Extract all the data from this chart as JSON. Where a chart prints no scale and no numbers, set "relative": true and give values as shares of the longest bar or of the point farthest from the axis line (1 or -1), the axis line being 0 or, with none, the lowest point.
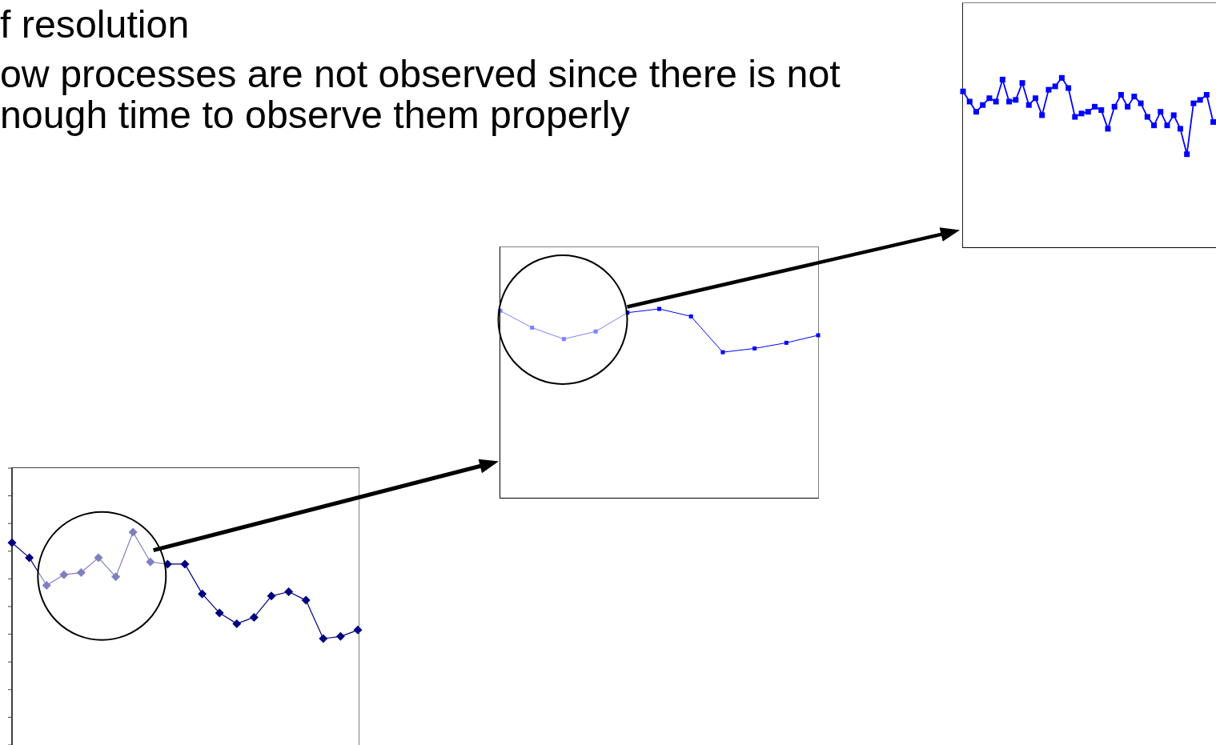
{
  "chart_data": [
    {
      "type": "other",
      "annotations": [
        "f resolution",
        "ow processes are not observed since there is not",
        "nough time to observe them properly"
      ]
    },
    {
      "type": "line",
      "relative": true,
      "categories": [
        null,
        null,
        null,
        null,
        null,
        null,
        null,
        null,
        null,
        null,
        null,
        null,
        null,
        null,
        null,
        null,
        null,
        null,
        null,
        null,
        null
      ],
      "values": [
        0.95,
        0.88,
        0.75,
        0.8,
        0.81,
        0.88,
        0.79,
        1,
        0.86,
        0.85,
        0.85,
        0.71,
        0.62,
        0.57,
        0.6,
        0.7,
        0.72,
        0.68,
        0.5,
        0.51,
        0.54
      ],
      "color": "#000080",
      "marker": "diamond",
      "line_style": "solid"
    },
    {
      "type": "line",
      "relative": true,
      "categories": [
        null,
        null,
        null,
        null,
        null,
        null,
        null,
        null,
        null,
        null,
        null
      ],
      "values": [
        0.99,
        0.9,
        0.84,
        0.88,
        0.98,
        1,
        0.96,
        0.77,
        0.79,
        0.82,
        0.86
      ],
      "color": "#0000ff",
      "marker": "square",
      "line_style": "solid"
    },
    {
      "type": "line",
      "relative": true,
      "categories": [
        null,
        null,
        null,
        null,
        null,
        null,
        null,
        null,
        null,
        null,
        null,
        null,
        null,
        null,
        null,
        null,
        null,
        null,
        null,
        null,
        null,
        null,
        null,
        null,
        null,
        null,
        null,
        null,
        null,
        null,
        null,
        null,
        null,
        null,
        null,
        null,
        null,
        null,
        null
      ],
      "values": [
        0.92,
        0.86,
        0.8,
        0.84,
        0.88,
        0.86,
        0.99,
        0.86,
        0.87,
        0.97,
        0.84,
        0.88,
        0.78,
        0.93,
        0.95,
        1,
        0.94,
        0.77,
        0.79,
        0.8,
        0.83,
        0.81,
        0.7,
        0.83,
        0.9,
        0.83,
        0.89,
        0.85,
        0.77,
        0.72,
        0.8,
        0.72,
        0.78,
        0.7,
        0.55,
        0.85,
        0.87,
        0.9,
        0.74
      ],
      "color": "#0000ff",
      "marker": "square",
      "line_style": "solid"
    }
  ]
}
